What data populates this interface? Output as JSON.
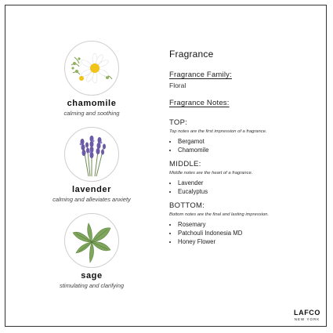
{
  "ingredients": [
    {
      "name": "chamomile",
      "desc": "calming and soothing",
      "icon": "chamomile-flower-icon"
    },
    {
      "name": "lavender",
      "desc": "calming and alleviates anxiety",
      "icon": "lavender-sprig-icon"
    },
    {
      "name": "sage",
      "desc": "stimulating and clarifying",
      "icon": "sage-leaves-icon"
    }
  ],
  "fragrance": {
    "title": "Fragrance",
    "family_label": "Fragrance Family:",
    "family_value": "Floral",
    "notes_label": "Fragrance Notes:",
    "top": {
      "label": "TOP:",
      "desc": "Top notes are the first impression of a fragrance.",
      "items": [
        "Bergamot",
        "Chamomile"
      ]
    },
    "middle": {
      "label": "MIDDLE:",
      "desc": "Middle notes are the heart of a fragrance.",
      "items": [
        "Lavender",
        "Eucalyptus"
      ]
    },
    "bottom": {
      "label": "BOTTOM:",
      "desc": "Bottom notes are the final and lasting impression.",
      "items": [
        "Rosemary",
        "Patchouli Indonesia MD",
        "Honey Flower"
      ]
    }
  },
  "brand": {
    "name": "LAFCO",
    "sub": "NEW YORK"
  }
}
